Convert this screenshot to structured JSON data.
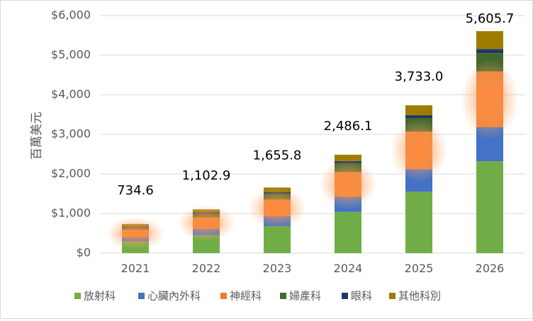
{
  "chart_data": {
    "type": "bar",
    "stacked": true,
    "title": "",
    "xlabel": "",
    "ylabel": "百萬美元",
    "ylim": [
      0,
      6000
    ],
    "yticks": [
      "$0",
      "$1,000",
      "$2,000",
      "$3,000",
      "$4,000",
      "$5,000",
      "$6,000"
    ],
    "tick_values": [
      0,
      1000,
      2000,
      3000,
      4000,
      5000,
      6000
    ],
    "grid": true,
    "legend": "bottom",
    "categories": [
      "2021",
      "2022",
      "2023",
      "2024",
      "2025",
      "2026"
    ],
    "totals": [
      734.6,
      1102.9,
      1655.8,
      2486.1,
      3733.0,
      5605.7
    ],
    "total_labels": [
      "734.6",
      "1,102.9",
      "1,655.8",
      "2,486.1",
      "3,733.0",
      "5,605.7"
    ],
    "series": [
      {
        "name": "放射科",
        "color": "#70ad47",
        "values": [
          290,
          450,
          680,
          1040,
          1550,
          2320
        ]
      },
      {
        "name": "心臟內外科",
        "color": "#4472c4",
        "values": [
          110,
          170,
          250,
          380,
          570,
          860
        ]
      },
      {
        "name": "神經科",
        "color": "#ed7d31",
        "values": [
          190,
          280,
          420,
          630,
          950,
          1410
        ]
      },
      {
        "name": "婦產科",
        "color": "#43682b",
        "values": [
          70,
          100,
          150,
          220,
          340,
          460
        ]
      },
      {
        "name": "眼科",
        "color": "#203864",
        "values": [
          24,
          33,
          46,
          56,
          73,
          106
        ]
      },
      {
        "name": "其他科別",
        "color": "#9e7c00",
        "values": [
          50.6,
          69.9,
          109.8,
          160.1,
          250.0,
          449.7
        ]
      }
    ]
  }
}
